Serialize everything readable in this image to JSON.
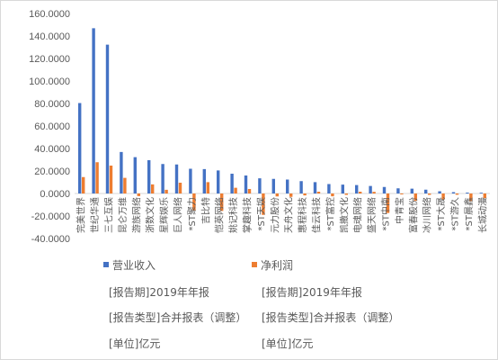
{
  "chart_data": {
    "type": "bar",
    "categories": [
      "完美世界",
      "世纪华通",
      "三七互娱",
      "昆仑万维",
      "游族网络",
      "浙数文化",
      "星辉娱乐",
      "巨人网络",
      "*ST聚力",
      "吉比特",
      "恺英网络",
      "姚记科技",
      "掌趣科技",
      "*ST天娱",
      "元力股份",
      "天舟文化",
      "惠程科技",
      "佳云科技",
      "*ST富控",
      "凯撒文化",
      "电魂网络",
      "盛天网络",
      "*ST中南",
      "中青宝",
      "富春股份",
      "冰川网络",
      "*ST大晟",
      "*ST游久",
      "*ST晨鑫",
      "长城动漫"
    ],
    "series": [
      {
        "name": "营业收入",
        "color": "#4472C4",
        "values": [
          80.4,
          146.9,
          132.3,
          36.9,
          32.3,
          29.6,
          26.2,
          25.8,
          22.0,
          21.7,
          20.5,
          17.6,
          16.0,
          13.5,
          13.0,
          12.4,
          11.0,
          10.1,
          8.4,
          7.9,
          7.5,
          6.7,
          5.8,
          4.6,
          4.3,
          3.4,
          2.0,
          1.2,
          0.8,
          0.7
        ]
      },
      {
        "name": "净利润",
        "color": "#ED7D31",
        "values": [
          14.6,
          27.8,
          24.8,
          13.9,
          -2.3,
          8.1,
          3.3,
          9.6,
          -15.0,
          10.1,
          -15.5,
          5.1,
          4.0,
          -19.0,
          -2.6,
          -3.0,
          -1.7,
          1.6,
          -2.5,
          -1.2,
          1.6,
          1.5,
          -17.3,
          -0.8,
          -6.5,
          -1.2,
          -5.3,
          -1.1,
          -6.9,
          -4.1
        ]
      }
    ],
    "yticks": [
      "160.0000",
      "140.0000",
      "120.0000",
      "100.0000",
      "80.0000",
      "60.0000",
      "40.0000",
      "20.0000",
      "0.0000",
      "-20.0000",
      "-40.0000"
    ],
    "ylim": [
      -40,
      160
    ],
    "grid": false,
    "legend_position": "bottom"
  },
  "notes": {
    "left_period": "[报告期]2019年年报",
    "right_period": "[报告期]2019年年报",
    "left_type": "[报告类型]合并报表（调整）",
    "right_type": "[报告类型]合并报表（调整）",
    "left_unit": "[单位]亿元",
    "right_unit": "[单位]亿元"
  }
}
